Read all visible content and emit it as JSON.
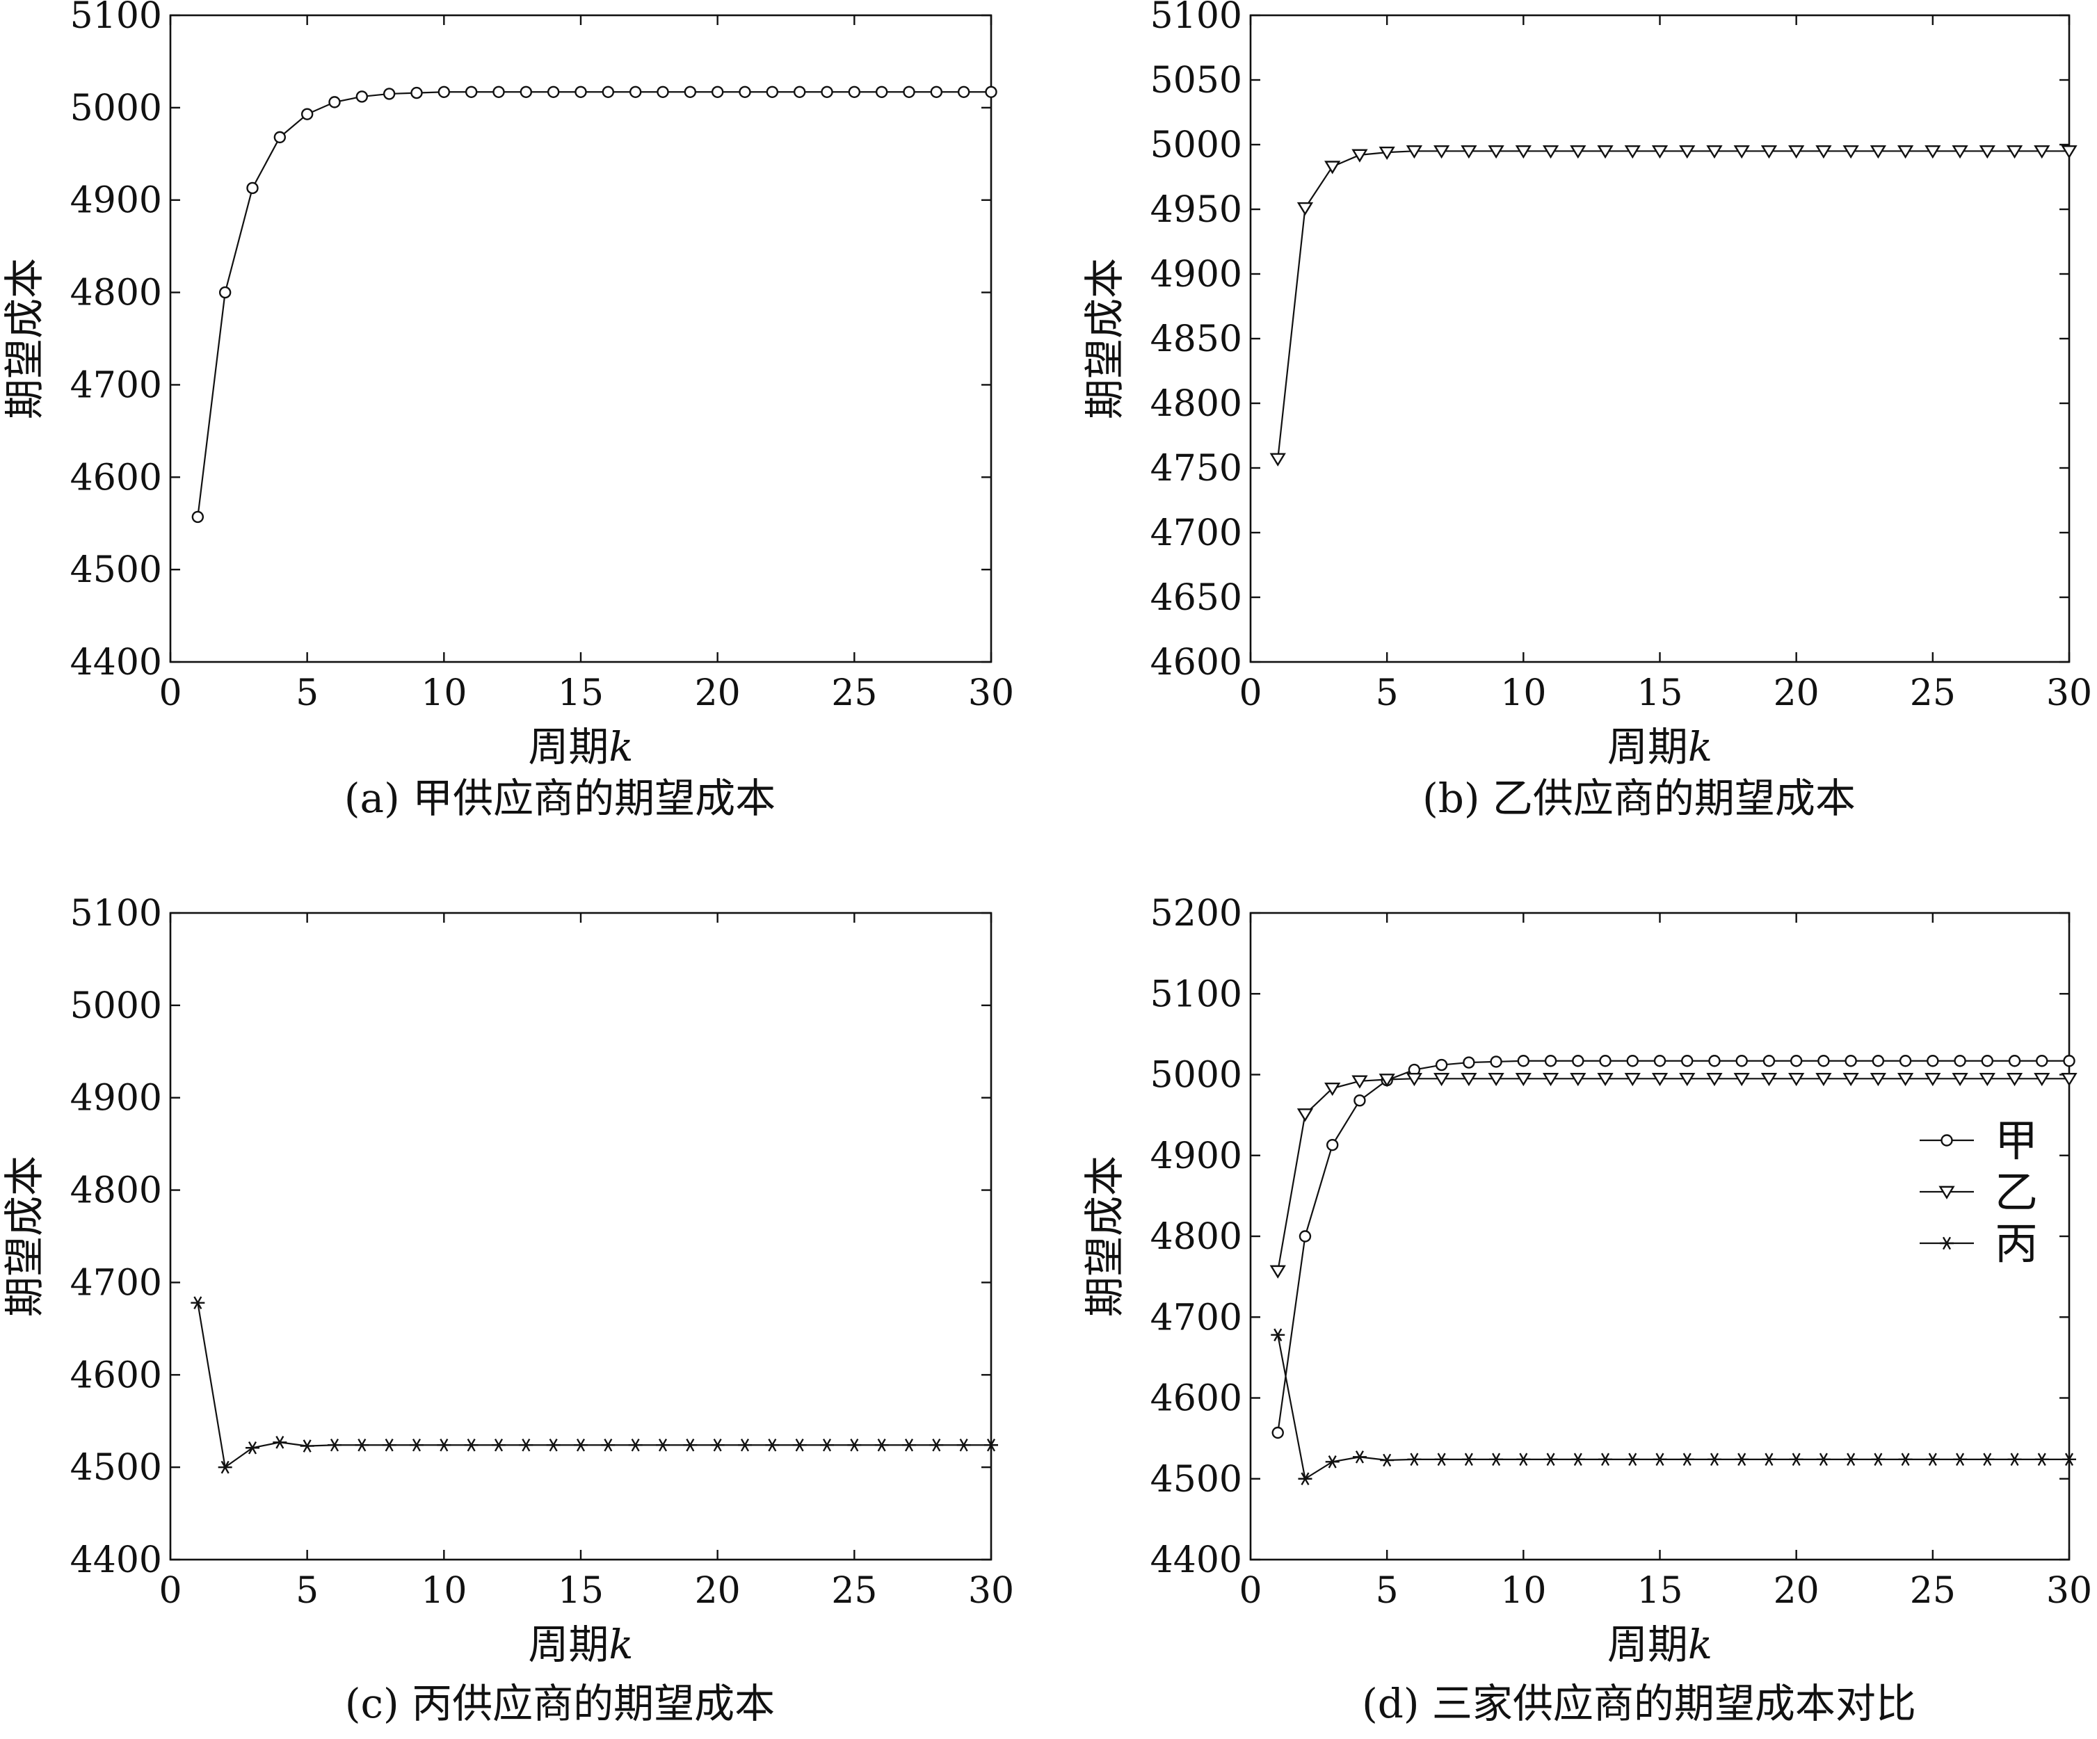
{
  "chart_data": [
    {
      "type": "line",
      "caption": "(a) 甲供应商的期望成本",
      "xlabel": "周期",
      "xlabel_var": "k",
      "ylabel": "期望成本",
      "xlim": [
        0,
        30
      ],
      "ylim": [
        4400,
        5100
      ],
      "xticks": [
        0,
        5,
        10,
        15,
        20,
        25,
        30
      ],
      "yticks": [
        4400,
        4500,
        4600,
        4700,
        4800,
        4900,
        5000,
        5100
      ],
      "x": [
        1,
        2,
        3,
        4,
        5,
        6,
        7,
        8,
        9,
        10,
        11,
        12,
        13,
        14,
        15,
        16,
        17,
        18,
        19,
        20,
        21,
        22,
        23,
        24,
        25,
        26,
        27,
        28,
        29,
        30
      ],
      "series": [
        {
          "marker": "circle",
          "values": [
            4557,
            4800,
            4913,
            4968,
            4993,
            5006,
            5012,
            5015,
            5016,
            5017,
            5017,
            5017,
            5017,
            5017,
            5017,
            5017,
            5017,
            5017,
            5017,
            5017,
            5017,
            5017,
            5017,
            5017,
            5017,
            5017,
            5017,
            5017,
            5017,
            5017
          ]
        }
      ]
    },
    {
      "type": "line",
      "caption": "(b) 乙供应商的期望成本",
      "xlabel": "周期",
      "xlabel_var": "k",
      "ylabel": "期望成本",
      "xlim": [
        0,
        30
      ],
      "ylim": [
        4600,
        5100
      ],
      "xticks": [
        0,
        5,
        10,
        15,
        20,
        25,
        30
      ],
      "yticks": [
        4600,
        4650,
        4700,
        4750,
        4800,
        4850,
        4900,
        4950,
        5000,
        5050,
        5100
      ],
      "x": [
        1,
        2,
        3,
        4,
        5,
        6,
        7,
        8,
        9,
        10,
        11,
        12,
        13,
        14,
        15,
        16,
        17,
        18,
        19,
        20,
        21,
        22,
        23,
        24,
        25,
        26,
        27,
        28,
        29,
        30
      ],
      "series": [
        {
          "marker": "triangle-down",
          "values": [
            4757,
            4951,
            4983,
            4992,
            4994,
            4995,
            4995,
            4995,
            4995,
            4995,
            4995,
            4995,
            4995,
            4995,
            4995,
            4995,
            4995,
            4995,
            4995,
            4995,
            4995,
            4995,
            4995,
            4995,
            4995,
            4995,
            4995,
            4995,
            4995,
            4995
          ]
        }
      ]
    },
    {
      "type": "line",
      "caption": "(c) 丙供应商的期望成本",
      "xlabel": "周期",
      "xlabel_var": "k",
      "ylabel": "期望成本",
      "xlim": [
        0,
        30
      ],
      "ylim": [
        4400,
        5100
      ],
      "xticks": [
        0,
        5,
        10,
        15,
        20,
        25,
        30
      ],
      "yticks": [
        4400,
        4500,
        4600,
        4700,
        4800,
        4900,
        5000,
        5100
      ],
      "x": [
        1,
        2,
        3,
        4,
        5,
        6,
        7,
        8,
        9,
        10,
        11,
        12,
        13,
        14,
        15,
        16,
        17,
        18,
        19,
        20,
        21,
        22,
        23,
        24,
        25,
        26,
        27,
        28,
        29,
        30
      ],
      "series": [
        {
          "marker": "star",
          "values": [
            4678,
            4500,
            4521,
            4527,
            4523,
            4524,
            4524,
            4524,
            4524,
            4524,
            4524,
            4524,
            4524,
            4524,
            4524,
            4524,
            4524,
            4524,
            4524,
            4524,
            4524,
            4524,
            4524,
            4524,
            4524,
            4524,
            4524,
            4524,
            4524,
            4524
          ]
        }
      ]
    },
    {
      "type": "line",
      "caption": "(d) 三家供应商的期望成本对比",
      "xlabel": "周期",
      "xlabel_var": "k",
      "ylabel": "期望成本",
      "xlim": [
        0,
        30
      ],
      "ylim": [
        4400,
        5200
      ],
      "xticks": [
        0,
        5,
        10,
        15,
        20,
        25,
        30
      ],
      "yticks": [
        4400,
        4500,
        4600,
        4700,
        4800,
        4900,
        5000,
        5100,
        5200
      ],
      "legend_position": "right",
      "x": [
        1,
        2,
        3,
        4,
        5,
        6,
        7,
        8,
        9,
        10,
        11,
        12,
        13,
        14,
        15,
        16,
        17,
        18,
        19,
        20,
        21,
        22,
        23,
        24,
        25,
        26,
        27,
        28,
        29,
        30
      ],
      "series": [
        {
          "name": "甲",
          "marker": "circle",
          "values": [
            4557,
            4800,
            4913,
            4968,
            4993,
            5006,
            5012,
            5015,
            5016,
            5017,
            5017,
            5017,
            5017,
            5017,
            5017,
            5017,
            5017,
            5017,
            5017,
            5017,
            5017,
            5017,
            5017,
            5017,
            5017,
            5017,
            5017,
            5017,
            5017,
            5017
          ]
        },
        {
          "name": "乙",
          "marker": "triangle-down",
          "values": [
            4757,
            4951,
            4983,
            4992,
            4994,
            4995,
            4995,
            4995,
            4995,
            4995,
            4995,
            4995,
            4995,
            4995,
            4995,
            4995,
            4995,
            4995,
            4995,
            4995,
            4995,
            4995,
            4995,
            4995,
            4995,
            4995,
            4995,
            4995,
            4995,
            4995
          ]
        },
        {
          "name": "丙",
          "marker": "star",
          "values": [
            4678,
            4500,
            4521,
            4527,
            4523,
            4524,
            4524,
            4524,
            4524,
            4524,
            4524,
            4524,
            4524,
            4524,
            4524,
            4524,
            4524,
            4524,
            4524,
            4524,
            4524,
            4524,
            4524,
            4524,
            4524,
            4524,
            4524,
            4524,
            4524,
            4524
          ]
        }
      ]
    }
  ]
}
